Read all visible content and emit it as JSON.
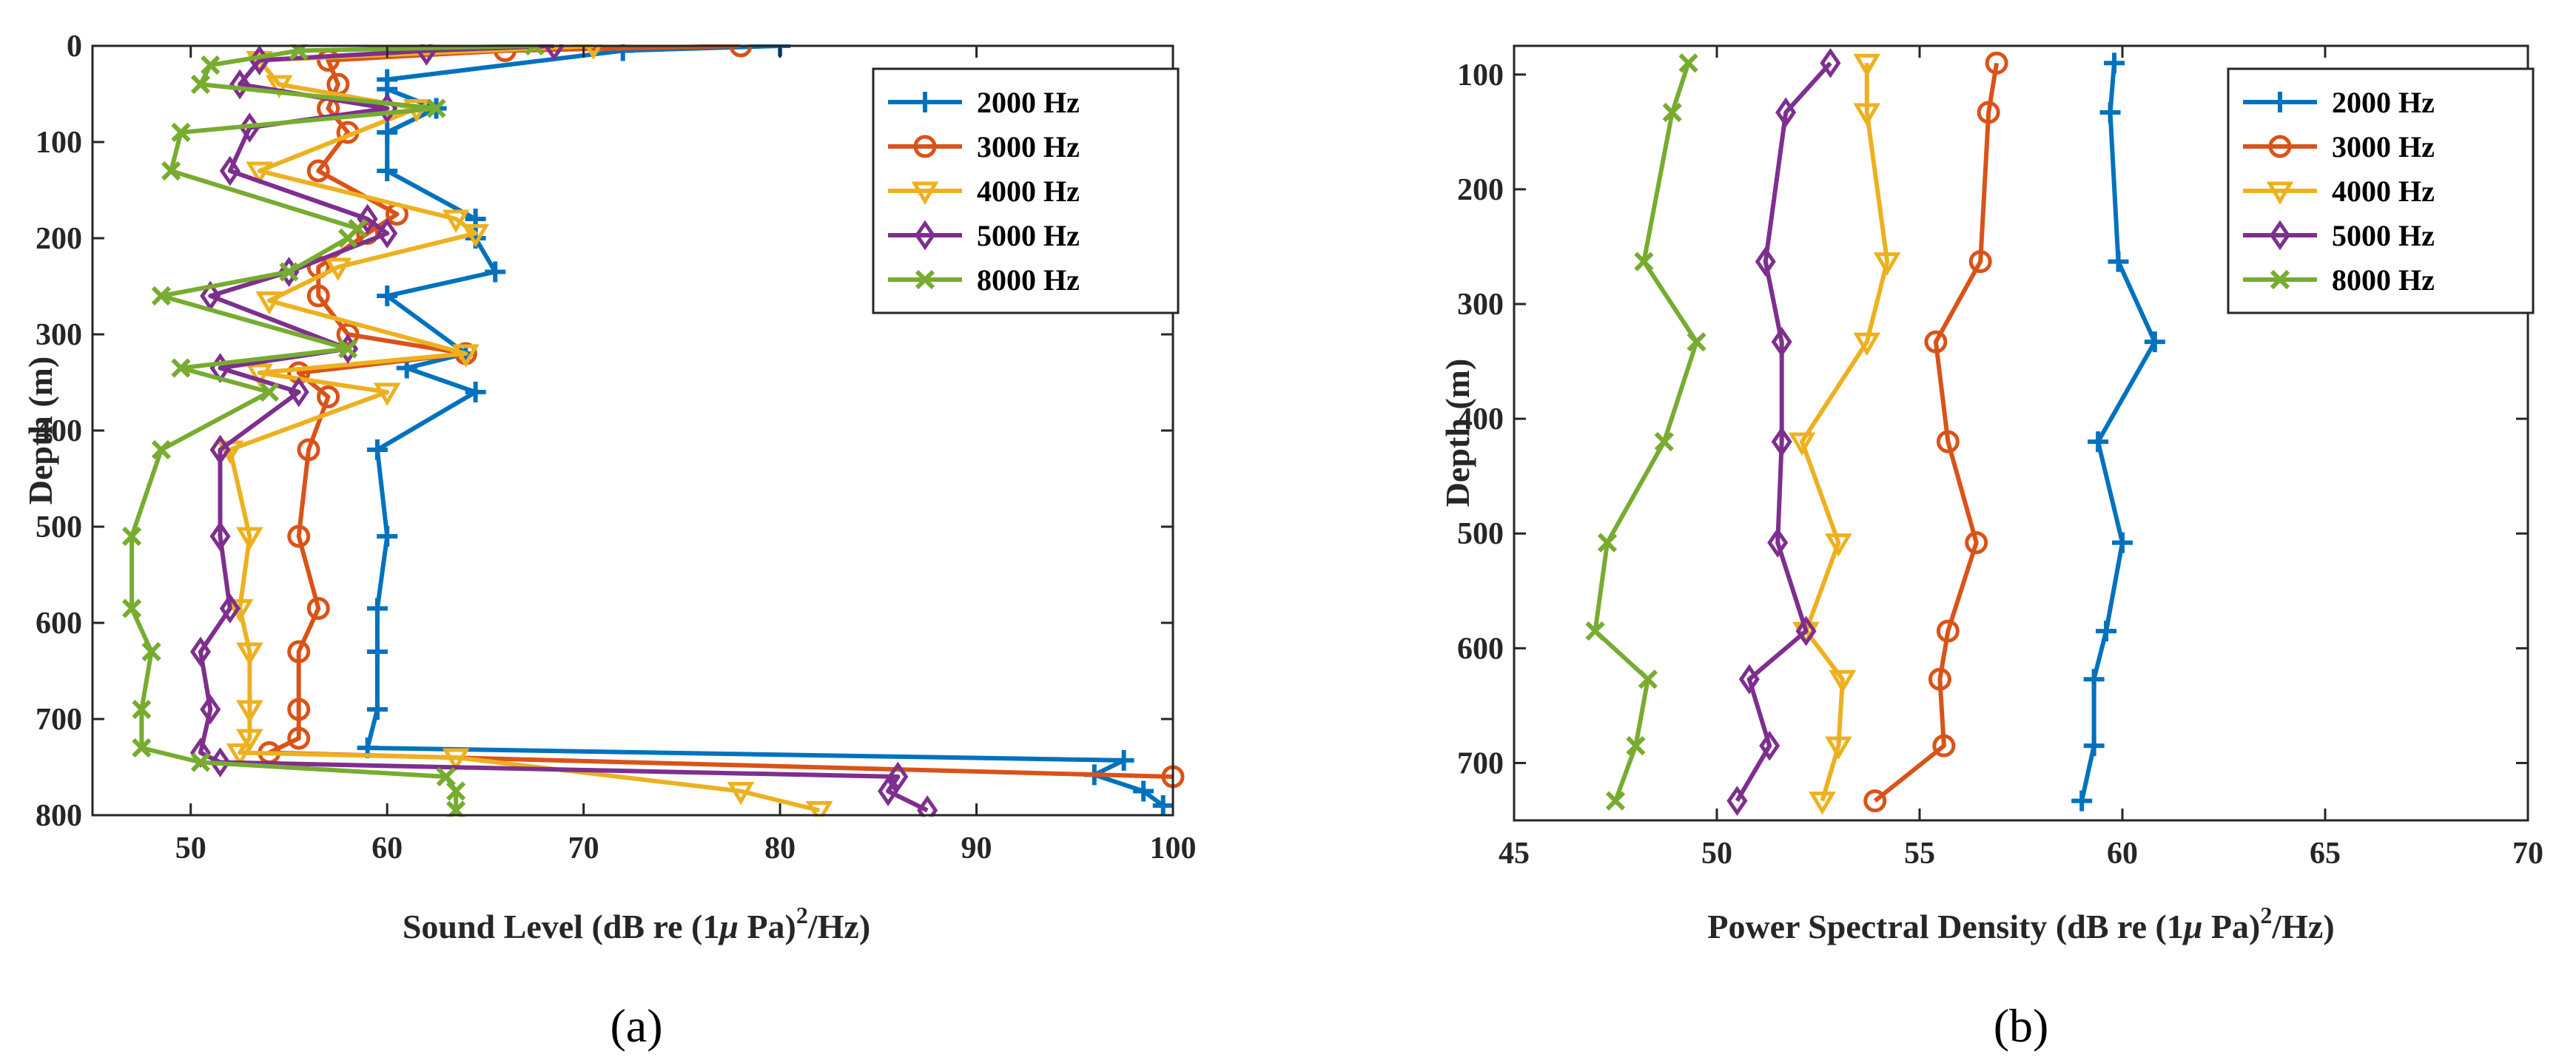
{
  "chart_data": [
    {
      "type": "line",
      "panel_label": "(a)",
      "xlabel": "Sound Level (dB re (1μ Pa)²/Hz)",
      "xlabel_parts": {
        "main": "Sound Level (dB re (1",
        "mu": "μ",
        "mid": " Pa)",
        "sup": "2",
        "tail": "/Hz)"
      },
      "ylabel": "Depth (m)",
      "xlim": [
        45,
        100
      ],
      "ylim": [
        0,
        800
      ],
      "xticks": [
        50,
        60,
        70,
        80,
        90,
        100
      ],
      "yticks": [
        0,
        100,
        200,
        300,
        400,
        500,
        600,
        700,
        800
      ],
      "y_reversed": true,
      "legend_position": "top-right",
      "series": [
        {
          "name": "2000 Hz",
          "color": "#0072BD",
          "marker": "plus",
          "x": [
            80,
            72,
            60,
            60,
            62.5,
            60,
            60,
            64.5,
            64.5,
            65.5,
            60,
            64,
            61,
            64.5,
            59.5,
            60,
            59.5,
            59.5,
            59.5,
            59,
            97.5,
            96,
            98.5,
            99.5
          ],
          "y": [
            0,
            5,
            35,
            45,
            65,
            90,
            130,
            180,
            200,
            235,
            260,
            320,
            335,
            360,
            420,
            510,
            585,
            630,
            690,
            730,
            743,
            758,
            775,
            790
          ]
        },
        {
          "name": "3000 Hz",
          "color": "#D95319",
          "marker": "circle",
          "x": [
            78,
            66,
            57,
            57.5,
            57,
            58,
            56.5,
            60.5,
            59,
            56.5,
            56.5,
            58,
            64,
            55.5,
            57,
            56,
            55.5,
            56.5,
            55.5,
            55.5,
            55.5,
            54,
            100
          ],
          "y": [
            0,
            5,
            15,
            40,
            65,
            90,
            130,
            175,
            195,
            230,
            260,
            300,
            320,
            340,
            365,
            420,
            510,
            585,
            630,
            690,
            720,
            735,
            760
          ]
        },
        {
          "name": "4000 Hz",
          "color": "#EDB120",
          "marker": "triangle-down",
          "x": [
            70.5,
            53.5,
            54.5,
            61.5,
            53.5,
            63.5,
            64.5,
            57.5,
            54,
            64,
            53.5,
            60,
            52,
            53,
            52.5,
            53,
            53,
            53,
            52.5,
            63.5,
            78,
            82
          ],
          "y": [
            0,
            15,
            40,
            65,
            130,
            180,
            195,
            230,
            265,
            320,
            340,
            360,
            420,
            510,
            585,
            630,
            690,
            720,
            735,
            740,
            775,
            795
          ]
        },
        {
          "name": "5000 Hz",
          "color": "#7E2F8E",
          "marker": "diamond",
          "x": [
            68.5,
            62,
            53.5,
            52.5,
            60,
            53,
            52,
            59,
            60,
            55,
            51,
            58,
            51.5,
            55.5,
            51.5,
            51.5,
            52,
            50.5,
            51,
            50.5,
            51.5,
            86,
            85.5,
            87.5
          ],
          "y": [
            0,
            5,
            15,
            40,
            65,
            85,
            130,
            180,
            195,
            235,
            260,
            315,
            335,
            360,
            420,
            510,
            585,
            630,
            690,
            735,
            745,
            760,
            775,
            795
          ]
        },
        {
          "name": "8000 Hz",
          "color": "#77AC30",
          "marker": "x",
          "x": [
            67.5,
            55.5,
            51,
            50.5,
            62.5,
            49.5,
            49,
            58.5,
            58,
            55,
            48.5,
            58,
            49.5,
            54,
            48.5,
            47,
            47,
            48,
            47.5,
            47.5,
            50.5,
            63,
            63.5,
            63.5
          ],
          "y": [
            0,
            5,
            20,
            40,
            65,
            90,
            130,
            190,
            200,
            235,
            260,
            315,
            335,
            360,
            420,
            510,
            585,
            630,
            690,
            730,
            745,
            760,
            775,
            795
          ]
        }
      ]
    },
    {
      "type": "line",
      "panel_label": "(b)",
      "xlabel": "Power Spectral Density (dB re (1μ Pa)²/Hz)",
      "xlabel_parts": {
        "main": "Power Spectral Density (dB re (1",
        "mu": "μ",
        "mid": " Pa)",
        "sup": "2",
        "tail": "/Hz)"
      },
      "ylabel": "Depth (m)",
      "xlim": [
        45,
        70
      ],
      "ylim": [
        75,
        750
      ],
      "xticks": [
        45,
        50,
        55,
        60,
        65,
        70
      ],
      "yticks": [
        100,
        200,
        300,
        400,
        500,
        600,
        700
      ],
      "y_reversed": true,
      "legend_position": "top-right",
      "series": [
        {
          "name": "2000 Hz",
          "color": "#0072BD",
          "marker": "plus",
          "x": [
            59.8,
            59.7,
            59.9,
            60.8,
            59.4,
            60.0,
            59.6,
            59.3,
            59.3,
            59.0
          ],
          "y": [
            90,
            133,
            263,
            333,
            420,
            508,
            585,
            627,
            685,
            733
          ]
        },
        {
          "name": "3000 Hz",
          "color": "#D95319",
          "marker": "circle",
          "x": [
            56.9,
            56.7,
            56.5,
            55.4,
            55.7,
            56.4,
            55.7,
            55.5,
            55.6,
            53.9
          ],
          "y": [
            90,
            133,
            263,
            333,
            420,
            508,
            585,
            627,
            685,
            733
          ]
        },
        {
          "name": "4000 Hz",
          "color": "#EDB120",
          "marker": "triangle-down",
          "x": [
            53.7,
            53.7,
            54.2,
            53.7,
            52.1,
            53.0,
            52.2,
            53.1,
            53.0,
            52.6
          ],
          "y": [
            90,
            133,
            263,
            333,
            420,
            508,
            585,
            627,
            685,
            733
          ]
        },
        {
          "name": "5000 Hz",
          "color": "#7E2F8E",
          "marker": "diamond",
          "x": [
            52.8,
            51.7,
            51.2,
            51.6,
            51.6,
            51.5,
            52.2,
            50.8,
            51.3,
            50.5
          ],
          "y": [
            90,
            133,
            263,
            333,
            420,
            508,
            585,
            627,
            685,
            733
          ]
        },
        {
          "name": "8000 Hz",
          "color": "#77AC30",
          "marker": "x",
          "x": [
            49.3,
            48.9,
            48.2,
            49.5,
            48.7,
            47.3,
            47.0,
            48.3,
            48.0,
            47.5
          ],
          "y": [
            90,
            133,
            263,
            333,
            420,
            508,
            585,
            627,
            685,
            733
          ]
        }
      ]
    }
  ]
}
